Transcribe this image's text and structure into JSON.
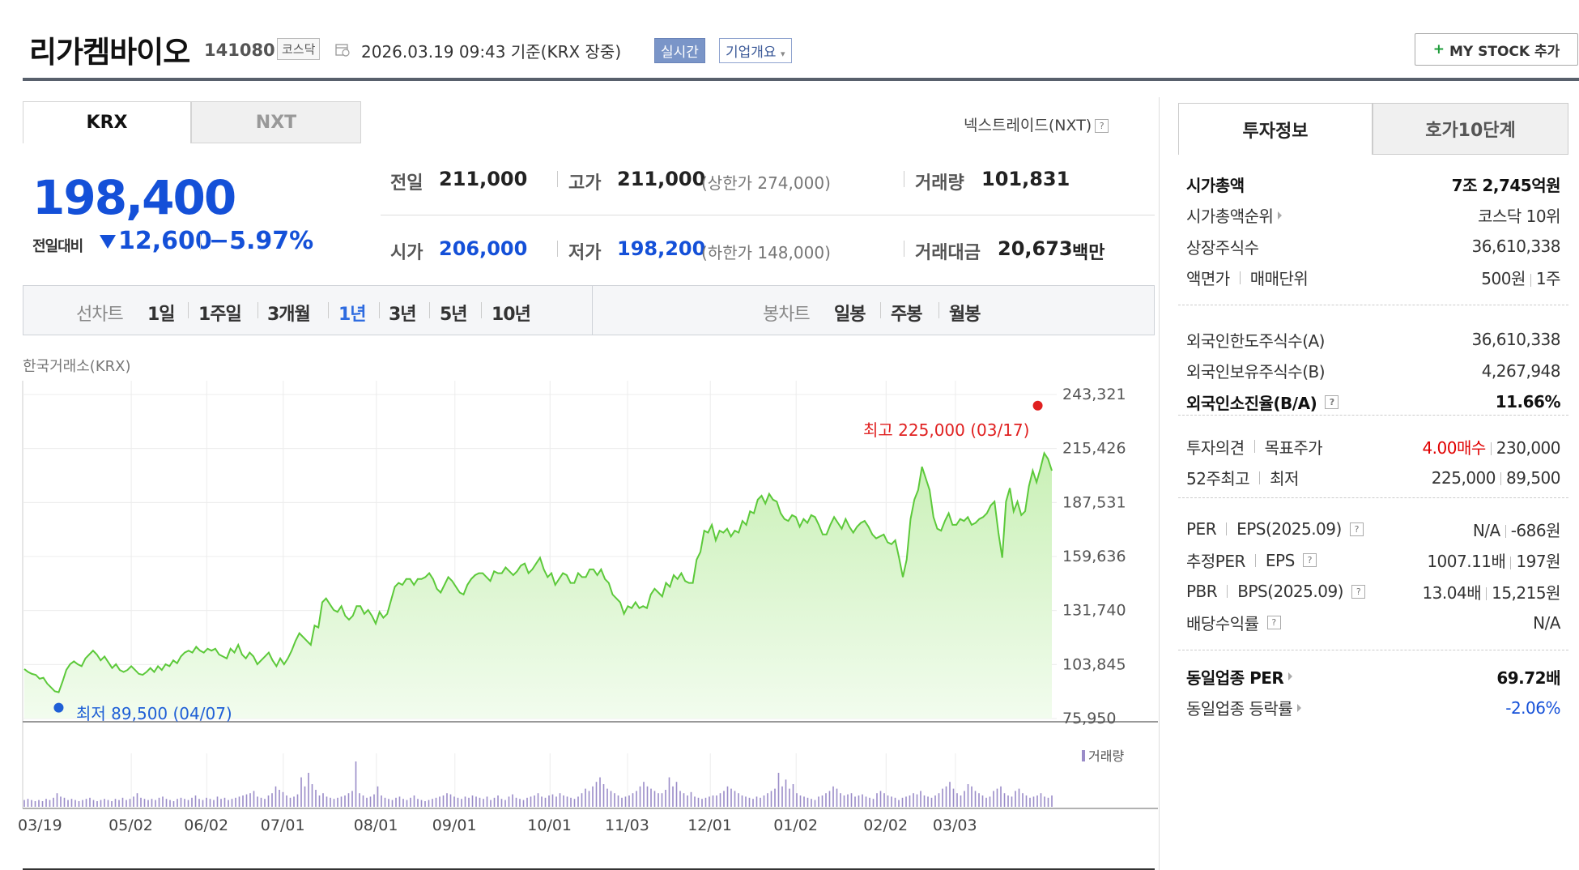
{
  "header": {
    "name": "리가켐바이오",
    "code": "141080",
    "market_tag": "코스닥",
    "date": "2026.03.19 09:43  기준(KRX 장중)",
    "realtime": "실시간",
    "overview": "기업개요",
    "mystock": "MY STOCK 추가"
  },
  "market_tabs": [
    "KRX",
    "NXT"
  ],
  "nxt_info": "넥스트레이드(NXT)",
  "price": {
    "current": "198,400",
    "change_label": "전일대비",
    "change": "12,600",
    "change_pct": "−5.97%"
  },
  "stats": {
    "prev_label": "전일",
    "prev": "211,000",
    "high_label": "고가",
    "high": "211,000",
    "upper_limit": "(상한가 274,000)",
    "volume_label": "거래량",
    "volume": "101,831",
    "open_label": "시가",
    "open": "206,000",
    "low_label": "저가",
    "low": "198,200",
    "lower_limit": "(하한가 148,000)",
    "amount_label": "거래대금",
    "amount": "20,673",
    "amount_unit": "백만"
  },
  "chart_toolbar": {
    "line_label": "선차트",
    "line_periods": [
      "1일",
      "1주일",
      "3개월",
      "1년",
      "3년",
      "5년",
      "10년"
    ],
    "active": "1년",
    "candle_label": "봉차트",
    "candle_periods": [
      "일봉",
      "주봉",
      "월봉"
    ]
  },
  "chart_source": "한국거래소(KRX)",
  "chart_data": {
    "type": "area",
    "y_ticks": [
      "243,321",
      "215,426",
      "187,531",
      "159,636",
      "131,740",
      "103,845",
      "75,950"
    ],
    "ylim": [
      75950,
      243321
    ],
    "x_ticks": [
      "03/19",
      "05/02",
      "06/02",
      "07/01",
      "08/01",
      "09/01",
      "10/01",
      "11/03",
      "12/01",
      "01/02",
      "02/02",
      "03/03"
    ],
    "high_label": "최고 225,000 (03/17)",
    "low_label": "최저 89,500 (04/07)",
    "high": 225000,
    "low": 89500,
    "volume_legend": "거래량",
    "colors": {
      "line": "#5cc93a",
      "fill_top": "#c9f0b6",
      "fill_bottom": "#f2fcee",
      "high": "#e02020",
      "low": "#1f5fd6",
      "volume": "#9a8cc8"
    },
    "series": [
      {
        "values": [
          101500,
          100000,
          99000,
          98500,
          96500,
          97000,
          94000,
          92000,
          90000,
          89500,
          95000,
          101000,
          104000,
          105500,
          104000,
          103000,
          107000,
          109000,
          111000,
          109000,
          106000,
          108000,
          105000,
          102000,
          104000,
          101000,
          100000,
          101000,
          103000,
          101000,
          99000,
          98500,
          100000,
          102000,
          100000,
          103000,
          101000,
          104000,
          103000,
          106000,
          104500,
          108000,
          110000,
          111000,
          110000,
          113000,
          111000,
          110000,
          112000,
          111000,
          112000,
          109000,
          108000,
          107000,
          112000,
          110000,
          114000,
          109000,
          107000,
          110000,
          108000,
          104000,
          106000,
          108000,
          110000,
          106000,
          103000,
          107000,
          104000,
          107000,
          111000,
          116000,
          120000,
          118000,
          116000,
          114000,
          124000,
          123000,
          136000,
          138000,
          135000,
          132000,
          131000,
          134000,
          129000,
          127000,
          129000,
          134000,
          134000,
          130000,
          132000,
          129000,
          125000,
          131000,
          128000,
          130000,
          137000,
          144000,
          146000,
          145000,
          148000,
          148000,
          145000,
          148000,
          148000,
          149000,
          151000,
          148000,
          143000,
          141000,
          145000,
          149000,
          147000,
          144000,
          141000,
          140000,
          145000,
          148000,
          150000,
          151000,
          151000,
          149000,
          147000,
          152000,
          151000,
          151000,
          154000,
          152000,
          150000,
          152000,
          155000,
          156000,
          151000,
          153000,
          156000,
          159000,
          153000,
          149000,
          151000,
          145000,
          148000,
          151000,
          150000,
          146000,
          146000,
          151000,
          149000,
          149000,
          153000,
          153000,
          150000,
          153000,
          148000,
          146000,
          140000,
          138000,
          136000,
          130000,
          134000,
          133000,
          136000,
          133000,
          134000,
          133000,
          140000,
          143000,
          141000,
          139000,
          146000,
          144000,
          150000,
          148000,
          151000,
          147000,
          146000,
          146000,
          158000,
          162000,
          173000,
          172000,
          176000,
          168000,
          173000,
          172000,
          174000,
          170000,
          173000,
          172000,
          178000,
          176000,
          183000,
          182000,
          189000,
          191000,
          187000,
          192000,
          189000,
          188000,
          182000,
          179000,
          178000,
          181000,
          180000,
          175000,
          179000,
          177000,
          181000,
          180000,
          176000,
          171000,
          171000,
          176000,
          180000,
          177000,
          174000,
          179000,
          175000,
          172000,
          175000,
          177000,
          178000,
          175000,
          171000,
          169000,
          170000,
          171000,
          167000,
          166000,
          168000,
          159000,
          149000,
          158000,
          179000,
          189000,
          194000,
          206000,
          200000,
          194000,
          180000,
          174000,
          173000,
          178000,
          182000,
          176000,
          176000,
          179000,
          178000,
          180000,
          176000,
          177000,
          179000,
          180000,
          182000,
          186000,
          188000,
          172000,
          159000,
          188000,
          195000,
          183000,
          188000,
          181000,
          183000,
          196000,
          204000,
          198000,
          205000,
          213000,
          210000,
          204000
        ]
      }
    ],
    "volume": [
      6,
      7,
      6,
      5,
      6,
      5,
      7,
      6,
      8,
      12,
      9,
      8,
      6,
      7,
      6,
      5,
      6,
      7,
      8,
      6,
      5,
      6,
      7,
      6,
      5,
      7,
      6,
      8,
      6,
      7,
      9,
      12,
      8,
      7,
      6,
      7,
      6,
      8,
      9,
      7,
      6,
      5,
      7,
      8,
      7,
      6,
      8,
      10,
      7,
      6,
      8,
      7,
      6,
      9,
      7,
      8,
      6,
      7,
      8,
      9,
      10,
      11,
      12,
      14,
      9,
      8,
      7,
      10,
      12,
      18,
      15,
      13,
      10,
      8,
      9,
      11,
      26,
      18,
      30,
      20,
      15,
      10,
      12,
      9,
      8,
      7,
      8,
      9,
      10,
      12,
      14,
      40,
      12,
      10,
      8,
      9,
      11,
      18,
      10,
      8,
      7,
      6,
      8,
      9,
      7,
      6,
      8,
      10,
      7,
      6,
      5,
      6,
      7,
      8,
      9,
      10,
      12,
      11,
      9,
      8,
      7,
      9,
      8,
      10,
      9,
      8,
      7,
      9,
      6,
      8,
      10,
      7,
      6,
      9,
      11,
      8,
      7,
      6,
      8,
      9,
      10,
      12,
      9,
      8,
      10,
      11,
      9,
      12,
      10,
      9,
      8,
      7,
      9,
      12,
      16,
      14,
      18,
      22,
      26,
      20,
      16,
      14,
      12,
      10,
      8,
      9,
      10,
      12,
      14,
      18,
      22,
      18,
      16,
      14,
      12,
      12,
      15,
      26,
      18,
      22,
      14,
      12,
      10,
      13,
      9,
      8,
      7,
      8,
      9,
      10,
      10,
      12,
      14,
      18,
      16,
      14,
      12,
      10,
      9,
      8,
      7,
      9,
      8,
      10,
      12,
      14,
      16,
      30,
      18,
      24,
      16,
      20,
      12,
      10,
      9,
      8,
      7,
      6,
      9,
      10,
      12,
      14,
      18,
      16,
      12,
      10,
      11,
      12,
      9,
      10,
      11,
      9,
      8,
      7,
      12,
      14,
      12,
      10,
      9,
      8,
      6,
      8,
      9,
      10,
      12,
      11,
      14,
      10,
      9,
      8,
      10,
      12,
      16,
      18,
      22,
      16,
      12,
      10,
      14,
      20,
      18,
      14,
      12,
      10,
      8,
      9,
      14,
      16,
      18,
      12,
      10,
      9,
      14,
      16,
      12,
      10,
      8,
      9,
      10,
      12,
      9,
      8,
      10
    ]
  },
  "invest": {
    "tabs": [
      "투자정보",
      "호가10단계"
    ],
    "group1": [
      {
        "k": "시가총액",
        "v": "7조 2,745억원",
        "bold": true
      },
      {
        "k": "시가총액순위",
        "v": "코스닥 10위",
        "arrow": true
      },
      {
        "k": "상장주식수",
        "v": "36,610,338"
      },
      {
        "k": "액면가",
        "k2": "매매단위",
        "v": "500원",
        "v2": "1주"
      }
    ],
    "group2": [
      {
        "k": "외국인한도주식수(A)",
        "v": "36,610,338"
      },
      {
        "k": "외국인보유주식수(B)",
        "v": "4,267,948"
      },
      {
        "k": "외국인소진율(B/A)",
        "v": "11.66%",
        "bold": true,
        "q": true
      }
    ],
    "group3": [
      {
        "k": "투자의견",
        "k2": "목표주가",
        "v": "4.00매수",
        "v2": "230,000",
        "red": true
      },
      {
        "k": "52주최고",
        "k2": "최저",
        "v": "225,000",
        "v2": "89,500"
      }
    ],
    "group4": [
      {
        "k": "PER",
        "k2": "EPS(2025.09)",
        "v": "N/A",
        "v2": "-686원",
        "q": true
      },
      {
        "k": "추정PER",
        "k2": "EPS",
        "v": "1007.11배",
        "v2": "197원",
        "q": true
      },
      {
        "k": "PBR",
        "k2": "BPS(2025.09)",
        "v": "13.04배",
        "v2": "15,215원",
        "q": true
      },
      {
        "k": "배당수익률",
        "v": "N/A",
        "q": true
      }
    ],
    "group5": [
      {
        "k": "동일업종 PER",
        "v": "69.72배",
        "bold": true,
        "arrow": true
      },
      {
        "k": "동일업종 등락률",
        "v": "-2.06%",
        "arrow": true,
        "blue": true
      }
    ]
  }
}
